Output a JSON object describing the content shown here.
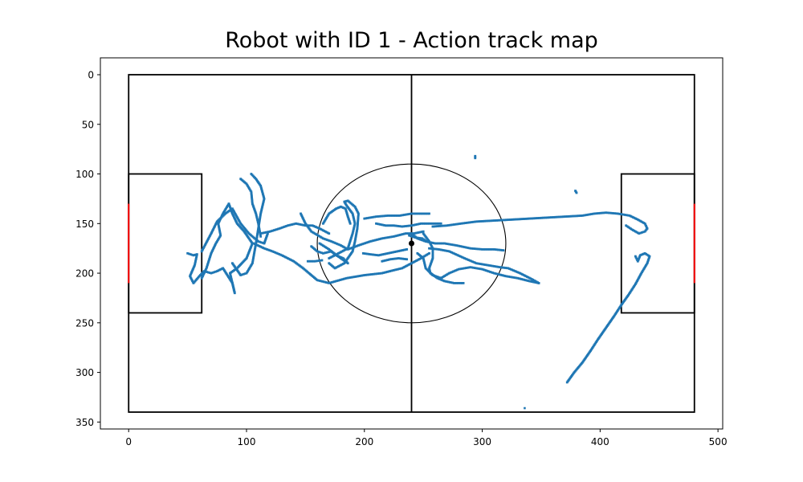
{
  "chart_data": {
    "type": "scatter",
    "title": "Robot with ID 1 - Action track map",
    "xlabel": "",
    "ylabel": "",
    "xlim": [
      -24,
      504
    ],
    "ylim": [
      357,
      -17
    ],
    "y_inverted": true,
    "x_ticks": [
      0,
      100,
      200,
      300,
      400,
      500
    ],
    "y_ticks": [
      0,
      50,
      100,
      150,
      200,
      250,
      300,
      350
    ],
    "grid": false,
    "legend": "none",
    "colors": {
      "track": "#1f77b4",
      "field_lines": "#000000",
      "goal": "#ff0000"
    },
    "field": {
      "outer": [
        0,
        0,
        480,
        340
      ],
      "left_box": [
        0,
        100,
        62,
        240
      ],
      "right_box": [
        418,
        100,
        480,
        240
      ],
      "center_line_x": 240,
      "center_circle": {
        "cx": 240,
        "cy": 170,
        "rx": 80,
        "ry": 80
      },
      "center_spot": [
        240,
        170
      ],
      "left_goal": {
        "x": 0,
        "y1": 130,
        "y2": 210
      },
      "right_goal": {
        "x": 480,
        "y1": 130,
        "y2": 210
      }
    },
    "track": [
      [
        [
          50,
          180
        ],
        [
          55,
          182
        ],
        [
          58,
          181
        ],
        [
          56,
          192
        ],
        [
          52,
          203
        ],
        [
          55,
          210
        ],
        [
          60,
          203
        ],
        [
          64,
          198
        ],
        [
          70,
          200
        ],
        [
          75,
          198
        ],
        [
          80,
          195
        ],
        [
          88,
          210
        ],
        [
          90,
          220
        ],
        [
          86,
          200
        ],
        [
          92,
          195
        ],
        [
          100,
          185
        ],
        [
          105,
          170
        ],
        [
          98,
          158
        ],
        [
          92,
          150
        ],
        [
          88,
          140
        ],
        [
          85,
          130
        ],
        [
          80,
          140
        ],
        [
          76,
          150
        ],
        [
          78,
          162
        ],
        [
          74,
          170
        ],
        [
          70,
          180
        ],
        [
          66,
          195
        ],
        [
          62,
          205
        ]
      ],
      [
        [
          62,
          178
        ],
        [
          70,
          160
        ],
        [
          75,
          148
        ],
        [
          82,
          140
        ],
        [
          88,
          135
        ],
        [
          95,
          150
        ],
        [
          102,
          160
        ],
        [
          110,
          168
        ],
        [
          115,
          170
        ],
        [
          118,
          160
        ]
      ],
      [
        [
          95,
          105
        ],
        [
          100,
          110
        ],
        [
          104,
          118
        ],
        [
          105,
          130
        ],
        [
          108,
          140
        ],
        [
          110,
          150
        ],
        [
          112,
          163
        ]
      ],
      [
        [
          104,
          100
        ],
        [
          108,
          105
        ],
        [
          112,
          112
        ],
        [
          115,
          125
        ],
        [
          112,
          140
        ],
        [
          110,
          155
        ],
        [
          108,
          170
        ],
        [
          105,
          190
        ],
        [
          100,
          200
        ],
        [
          95,
          202
        ],
        [
          88,
          190
        ]
      ],
      [
        [
          112,
          160
        ],
        [
          120,
          158
        ],
        [
          128,
          155
        ],
        [
          135,
          152
        ],
        [
          142,
          150
        ],
        [
          150,
          152
        ],
        [
          156,
          152
        ],
        [
          162,
          155
        ],
        [
          170,
          160
        ]
      ],
      [
        [
          106,
          170
        ],
        [
          115,
          175
        ],
        [
          122,
          178
        ],
        [
          130,
          182
        ],
        [
          140,
          188
        ],
        [
          148,
          195
        ],
        [
          155,
          202
        ],
        [
          160,
          207
        ],
        [
          170,
          210
        ],
        [
          185,
          205
        ],
        [
          200,
          202
        ],
        [
          215,
          200
        ],
        [
          225,
          197
        ],
        [
          232,
          195
        ],
        [
          240,
          190
        ],
        [
          248,
          185
        ],
        [
          255,
          180
        ]
      ],
      [
        [
          146,
          140
        ],
        [
          150,
          150
        ],
        [
          155,
          158
        ],
        [
          165,
          165
        ],
        [
          172,
          168
        ],
        [
          180,
          172
        ],
        [
          186,
          176
        ],
        [
          195,
          172
        ],
        [
          205,
          168
        ],
        [
          215,
          165
        ],
        [
          225,
          163
        ],
        [
          235,
          160
        ],
        [
          242,
          160
        ],
        [
          250,
          158
        ]
      ],
      [
        [
          170,
          185
        ],
        [
          178,
          180
        ],
        [
          186,
          175
        ],
        [
          190,
          160
        ],
        [
          192,
          150
        ],
        [
          190,
          140
        ],
        [
          185,
          132
        ],
        [
          183,
          128
        ],
        [
          186,
          127
        ],
        [
          192,
          133
        ],
        [
          195,
          140
        ],
        [
          194,
          155
        ],
        [
          192,
          168
        ],
        [
          190,
          178
        ],
        [
          183,
          190
        ],
        [
          175,
          195
        ],
        [
          170,
          190
        ]
      ],
      [
        [
          165,
          150
        ],
        [
          170,
          140
        ],
        [
          176,
          135
        ],
        [
          180,
          133
        ],
        [
          184,
          135
        ],
        [
          186,
          143
        ],
        [
          188,
          150
        ]
      ],
      [
        [
          162,
          170
        ],
        [
          170,
          176
        ],
        [
          176,
          182
        ],
        [
          182,
          185
        ],
        [
          186,
          190
        ],
        [
          180,
          185
        ],
        [
          172,
          178
        ],
        [
          165,
          180
        ],
        [
          160,
          178
        ],
        [
          155,
          173
        ]
      ],
      [
        [
          200,
          145
        ],
        [
          210,
          143
        ],
        [
          220,
          142
        ],
        [
          230,
          142
        ],
        [
          240,
          140
        ],
        [
          250,
          140
        ],
        [
          255,
          140
        ]
      ],
      [
        [
          210,
          150
        ],
        [
          218,
          152
        ],
        [
          225,
          152
        ],
        [
          232,
          153
        ],
        [
          240,
          152
        ],
        [
          248,
          150
        ],
        [
          255,
          150
        ],
        [
          265,
          150
        ]
      ],
      [
        [
          240,
          160
        ],
        [
          245,
          165
        ],
        [
          252,
          168
        ],
        [
          260,
          170
        ],
        [
          268,
          170
        ],
        [
          278,
          172
        ],
        [
          290,
          175
        ],
        [
          300,
          176
        ],
        [
          310,
          176
        ],
        [
          318,
          177
        ]
      ],
      [
        [
          250,
          160
        ],
        [
          255,
          168
        ],
        [
          258,
          175
        ],
        [
          258,
          185
        ],
        [
          255,
          195
        ],
        [
          256,
          200
        ],
        [
          262,
          205
        ],
        [
          268,
          208
        ],
        [
          276,
          210
        ],
        [
          284,
          210
        ]
      ],
      [
        [
          245,
          180
        ],
        [
          250,
          185
        ],
        [
          252,
          195
        ],
        [
          258,
          202
        ],
        [
          265,
          205
        ],
        [
          272,
          200
        ],
        [
          280,
          196
        ],
        [
          290,
          194
        ],
        [
          300,
          196
        ],
        [
          310,
          200
        ],
        [
          320,
          203
        ],
        [
          330,
          205
        ],
        [
          340,
          208
        ],
        [
          348,
          210
        ]
      ],
      [
        [
          255,
          175
        ],
        [
          263,
          176
        ],
        [
          272,
          178
        ],
        [
          285,
          185
        ],
        [
          295,
          190
        ],
        [
          305,
          192
        ],
        [
          315,
          194
        ],
        [
          322,
          195
        ],
        [
          332,
          200
        ],
        [
          342,
          206
        ],
        [
          348,
          210
        ]
      ],
      [
        [
          258,
          153
        ],
        [
          270,
          152
        ],
        [
          282,
          150
        ],
        [
          295,
          148
        ],
        [
          310,
          147
        ],
        [
          325,
          146
        ],
        [
          340,
          145
        ],
        [
          355,
          144
        ],
        [
          370,
          143
        ],
        [
          385,
          142
        ],
        [
          395,
          140
        ],
        [
          405,
          139
        ],
        [
          415,
          140
        ],
        [
          425,
          142
        ],
        [
          432,
          146
        ],
        [
          438,
          150
        ],
        [
          440,
          155
        ],
        [
          438,
          158
        ],
        [
          433,
          160
        ],
        [
          427,
          156
        ],
        [
          422,
          152
        ]
      ],
      [
        [
          372,
          310
        ],
        [
          378,
          300
        ],
        [
          385,
          290
        ],
        [
          392,
          278
        ],
        [
          398,
          267
        ],
        [
          405,
          255
        ],
        [
          412,
          243
        ],
        [
          418,
          232
        ],
        [
          424,
          222
        ],
        [
          430,
          211
        ],
        [
          435,
          200
        ],
        [
          440,
          190
        ],
        [
          442,
          183
        ],
        [
          438,
          180
        ],
        [
          434,
          182
        ],
        [
          432,
          188
        ],
        [
          430,
          183
        ]
      ],
      [
        [
          238,
          162
        ],
        [
          243,
          164
        ],
        [
          249,
          165
        ],
        [
          253,
          168
        ]
      ],
      [
        [
          199,
          180
        ],
        [
          205,
          181
        ],
        [
          212,
          182
        ],
        [
          220,
          180
        ],
        [
          228,
          178
        ],
        [
          236,
          176
        ]
      ],
      [
        [
          215,
          188
        ],
        [
          222,
          186
        ],
        [
          229,
          185
        ],
        [
          236,
          186
        ]
      ],
      [
        [
          152,
          188
        ],
        [
          158,
          188
        ],
        [
          164,
          187
        ]
      ],
      [
        [
          294,
          82
        ],
        [
          294,
          84
        ]
      ],
      [
        [
          379,
          117
        ],
        [
          380,
          119
        ]
      ],
      [
        [
          336,
          336
        ]
      ]
    ]
  }
}
